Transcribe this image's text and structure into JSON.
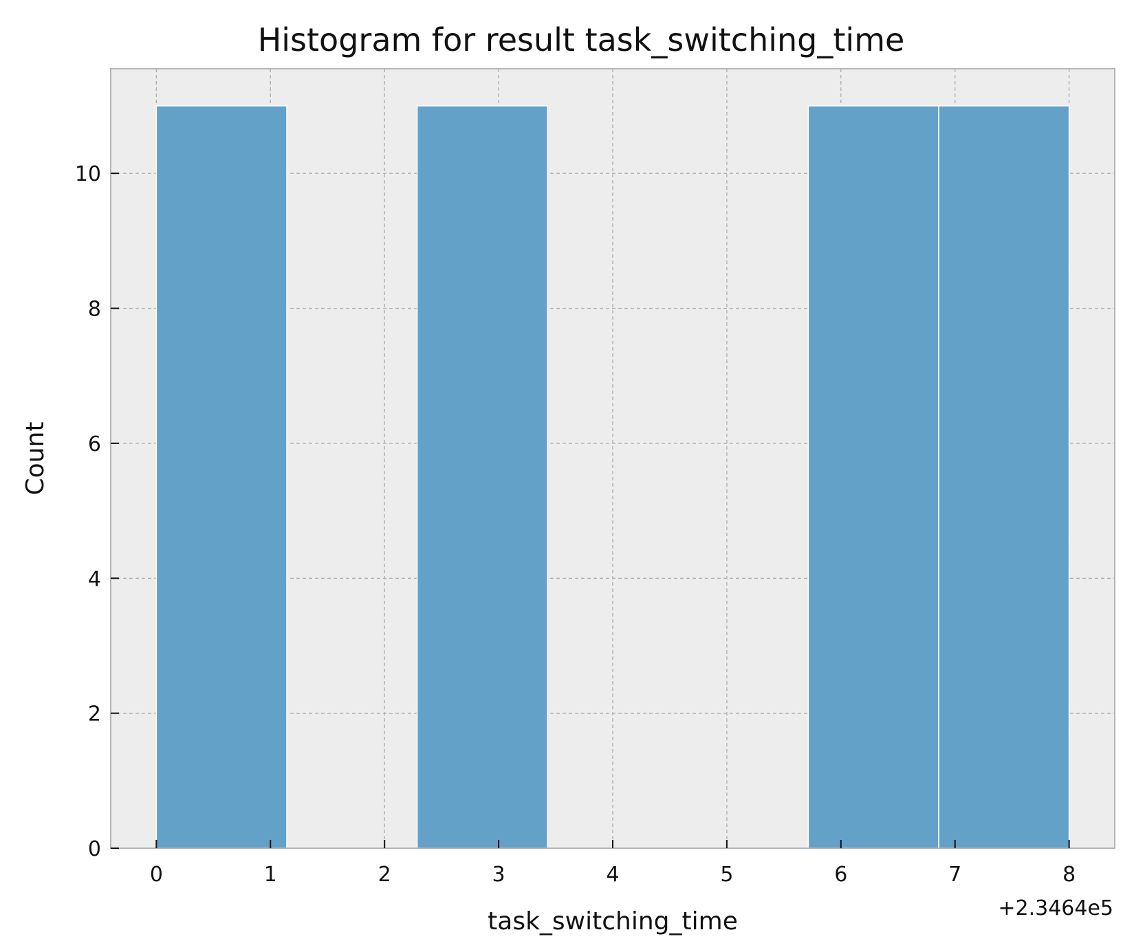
{
  "chart_data": {
    "type": "bar",
    "title": "Histogram for result task_switching_time",
    "xlabel": "task_switching_time",
    "ylabel": "Count",
    "x_offset_label": "+2.3464e5",
    "xlim": [
      -0.4,
      8.4
    ],
    "ylim": [
      0,
      11.55
    ],
    "xticks": [
      0,
      1,
      2,
      3,
      4,
      5,
      6,
      7,
      8
    ],
    "yticks": [
      0,
      2,
      4,
      6,
      8,
      10
    ],
    "grid": true,
    "bins": [
      {
        "x0": 0.0,
        "x1": 1.143,
        "count": 11
      },
      {
        "x0": 1.143,
        "x1": 2.286,
        "count": 0
      },
      {
        "x0": 2.286,
        "x1": 3.429,
        "count": 11
      },
      {
        "x0": 3.429,
        "x1": 4.571,
        "count": 0
      },
      {
        "x0": 4.571,
        "x1": 5.714,
        "count": 0
      },
      {
        "x0": 5.714,
        "x1": 6.857,
        "count": 11
      },
      {
        "x0": 6.857,
        "x1": 8.0,
        "count": 11
      }
    ],
    "colors": {
      "bar": "#64a1c8",
      "plot_background": "#ededed",
      "grid": "#b0b0b0",
      "spine": "#b5b5b5"
    }
  }
}
